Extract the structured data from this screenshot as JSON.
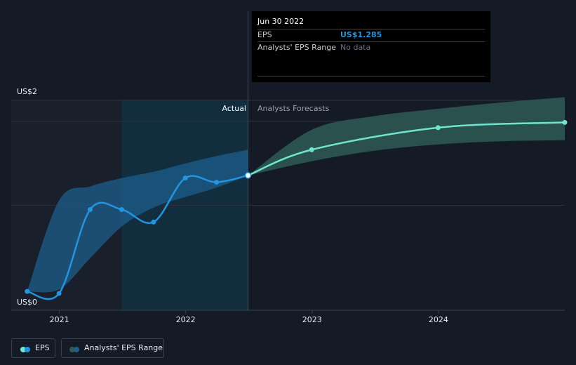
{
  "tooltip": {
    "date": "Jun 30 2022",
    "eps_label": "EPS",
    "eps_value": "US$1.285",
    "range_label": "Analysts' EPS Range",
    "range_value": "No data"
  },
  "legend": {
    "eps": "EPS",
    "range": "Analysts' EPS Range"
  },
  "colors": {
    "eps": "#2394df",
    "forecast": "#6fe5d1",
    "range_band": "#1e5d8c",
    "forecast_band": "#2e5a55",
    "background": "#151b26",
    "highlight": "#0d3b4f"
  },
  "chart_data": {
    "type": "line",
    "ylim": [
      0,
      2
    ],
    "xlim": [
      "2020-08-15",
      "2024-12-31"
    ],
    "y_ticks": [
      "US$0",
      "US$2"
    ],
    "x_ticks": [
      "2021",
      "2022",
      "2023",
      "2024"
    ],
    "section_labels": {
      "actual": "Actual",
      "forecast": "Analysts Forecasts"
    },
    "series": [
      {
        "name": "EPS",
        "x": [
          "2020-09-30",
          "2020-12-31",
          "2021-03-31",
          "2021-06-30",
          "2021-09-30",
          "2021-12-31",
          "2022-03-31",
          "2022-06-30"
        ],
        "values": [
          0.18,
          0.16,
          0.96,
          0.96,
          0.84,
          1.26,
          1.22,
          1.285
        ]
      },
      {
        "name": "Forecast",
        "x": [
          "2022-06-30",
          "2022-12-31",
          "2023-12-31",
          "2024-12-31"
        ],
        "values": [
          1.285,
          1.53,
          1.74,
          1.79
        ]
      }
    ],
    "bands": [
      {
        "name": "Analysts' EPS Range",
        "x": [
          "2020-09-30",
          "2021-01-01",
          "2021-04-01",
          "2021-07-01",
          "2021-10-01",
          "2022-01-01",
          "2022-04-01",
          "2022-06-30"
        ],
        "upper": [
          0.18,
          1.05,
          1.18,
          1.26,
          1.32,
          1.4,
          1.47,
          1.53
        ],
        "lower": [
          0.18,
          0.2,
          0.5,
          0.8,
          0.98,
          1.08,
          1.17,
          1.285
        ]
      },
      {
        "name": "Forecast Range",
        "x": [
          "2022-06-30",
          "2022-12-31",
          "2023-06-30",
          "2023-12-31",
          "2024-06-30",
          "2024-12-31"
        ],
        "upper": [
          1.285,
          1.72,
          1.85,
          1.92,
          1.98,
          2.03
        ],
        "lower": [
          1.285,
          1.42,
          1.52,
          1.58,
          1.61,
          1.62
        ]
      }
    ],
    "highlight_range": [
      "2021-06-30",
      "2022-06-30"
    ],
    "selected_x": "2022-06-30"
  }
}
